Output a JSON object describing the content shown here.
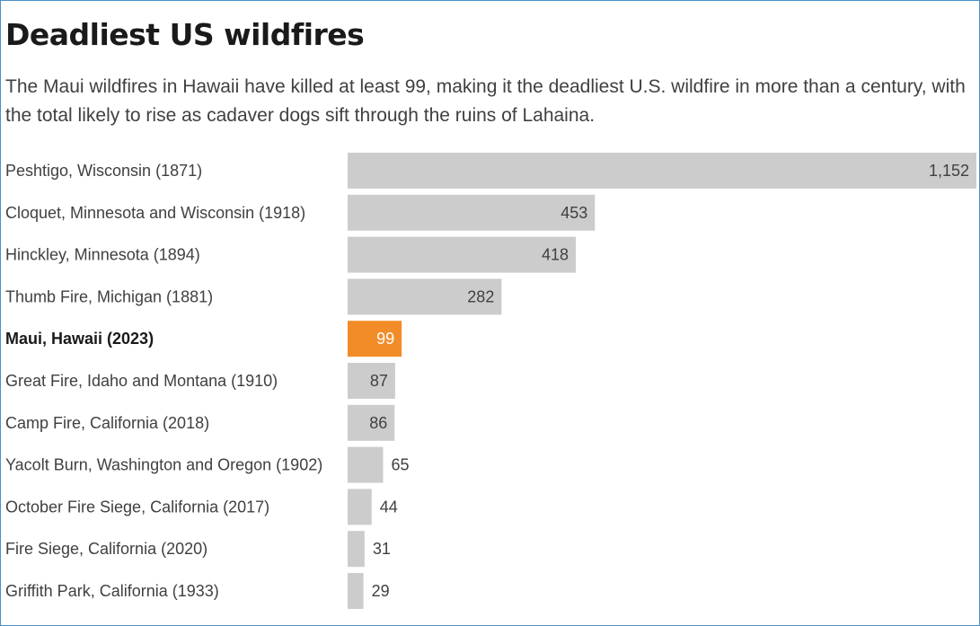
{
  "title": "Deadliest US wildfires",
  "subtitle": "The Maui wildfires in Hawaii have killed at least 99, making it the deadliest U.S. wildfire in more than a century, with the total likely to rise as cadaver dogs sift through the ruins of Lahaina.",
  "colors": {
    "bar": "#cccccc",
    "highlight": "#f28c28",
    "border": "#4a90c8"
  },
  "chart_data": {
    "type": "bar",
    "orientation": "horizontal",
    "categories": [
      "Peshtigo, Wisconsin (1871)",
      "Cloquet, Minnesota and Wisconsin (1918)",
      "Hinckley, Minnesota (1894)",
      "Thumb Fire, Michigan (1881)",
      "Maui, Hawaii (2023)",
      "Great Fire, Idaho and Montana (1910)",
      "Camp Fire, California (2018)",
      "Yacolt Burn, Washington and Oregon (1902)",
      "October Fire Siege, California (2017)",
      "Fire Siege, California (2020)",
      "Griffith Park, California (1933)"
    ],
    "values": [
      1152,
      453,
      418,
      282,
      99,
      87,
      86,
      65,
      44,
      31,
      29
    ],
    "value_labels": [
      "1,152",
      "453",
      "418",
      "282",
      "99",
      "87",
      "86",
      "65",
      "44",
      "31",
      "29"
    ],
    "highlight": "Maui, Hawaii (2023)",
    "xlim": [
      0,
      1152
    ],
    "grid": false,
    "legend": "none"
  }
}
